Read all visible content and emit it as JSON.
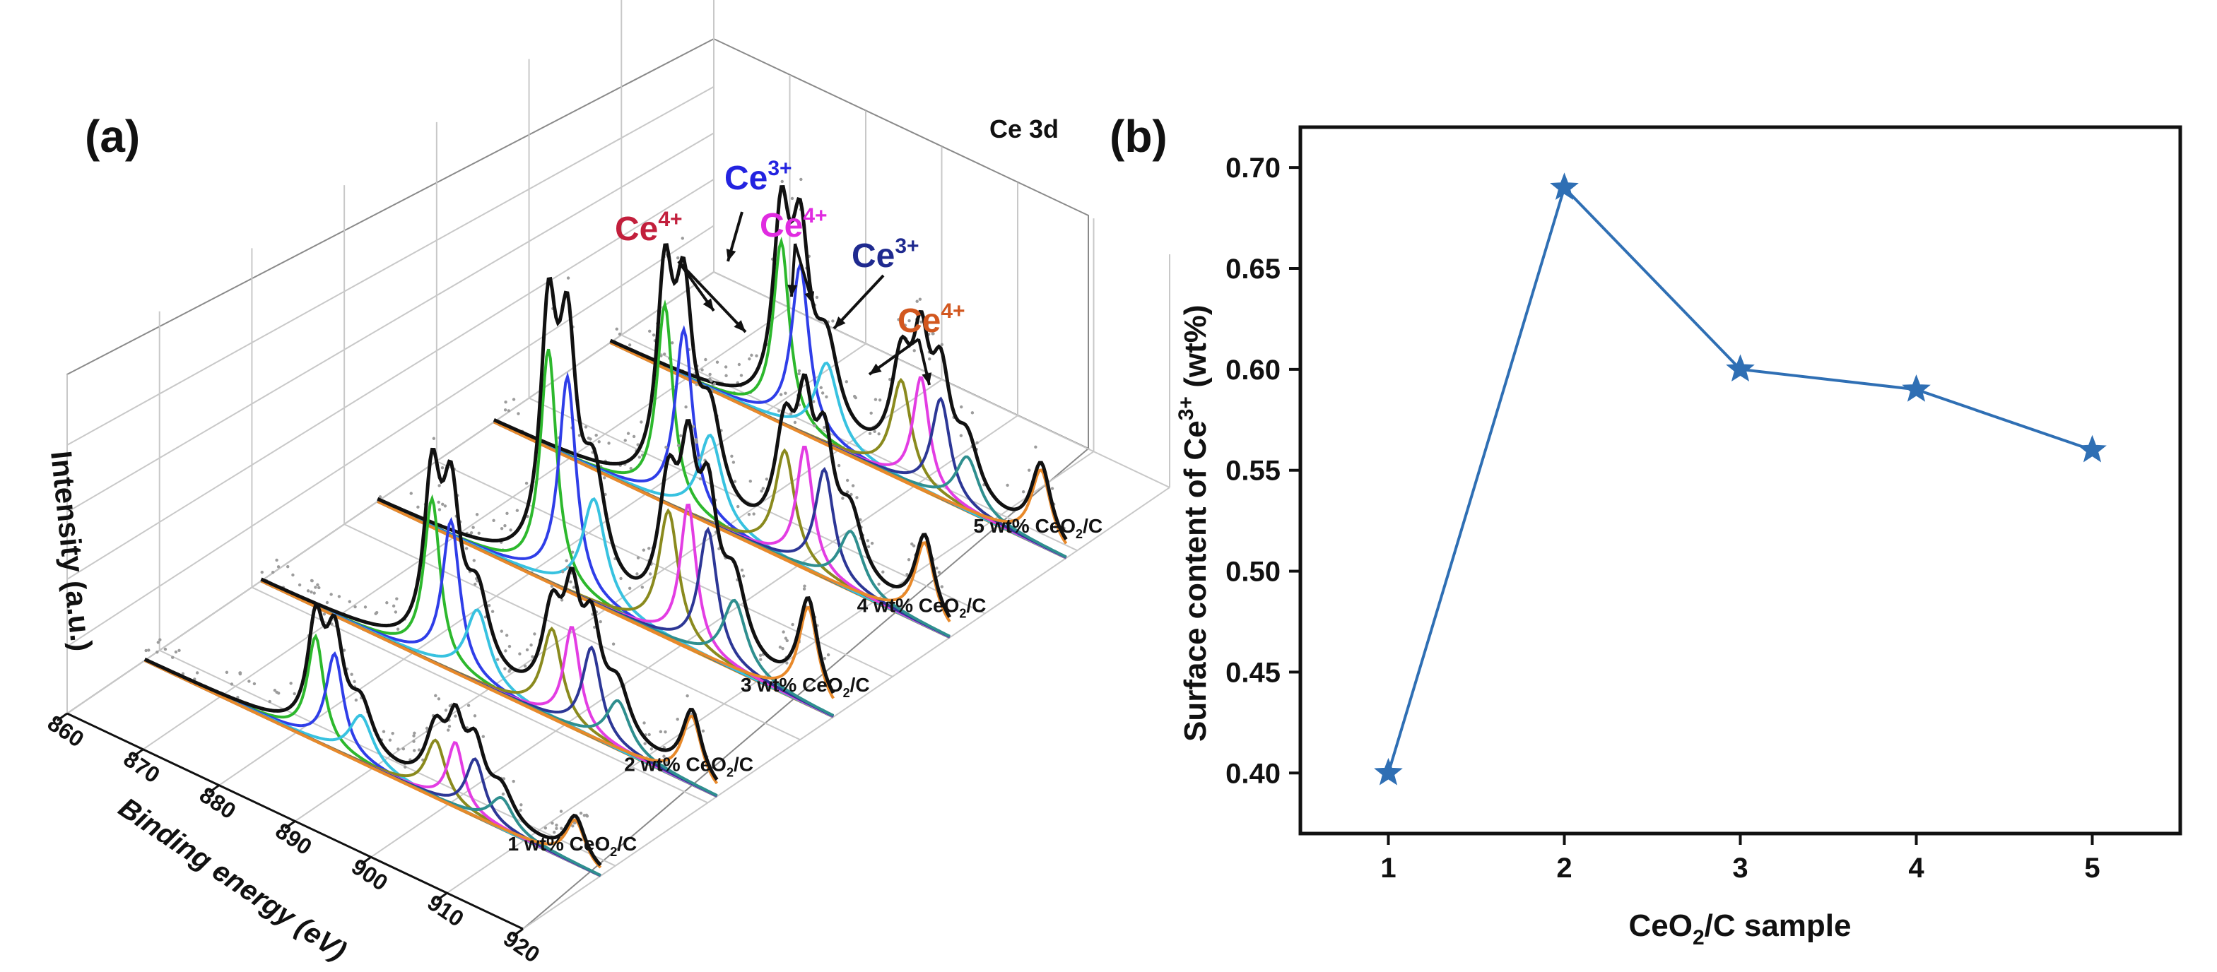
{
  "chart_data": [
    {
      "panel": "(a)",
      "type": "line",
      "subtype": "3d-waterfall-xps",
      "annotation": "Ce 3d",
      "ylabel": "Intensity (a.u.)",
      "xlabel": "Binding energy (eV)",
      "xticks": [
        860,
        870,
        880,
        890,
        900,
        910,
        920
      ],
      "xlim": [
        860,
        920
      ],
      "series": [
        {
          "name": "1 wt% CeO",
          "sub": "2",
          "tail": "/C",
          "scale": 0.45
        },
        {
          "name": "2 wt% CeO",
          "sub": "2",
          "tail": "/C",
          "scale": 0.7
        },
        {
          "name": "3 wt% CeO",
          "sub": "2",
          "tail": "/C",
          "scale": 1.0
        },
        {
          "name": "4 wt% CeO",
          "sub": "2",
          "tail": "/C",
          "scale": 0.85
        },
        {
          "name": "5 wt% CeO",
          "sub": "2",
          "tail": "/C",
          "scale": 0.78
        }
      ],
      "peaks": [
        {
          "center": 882.5,
          "color": "#2db82d",
          "amp": 1.0,
          "width": 1.3
        },
        {
          "center": 885.0,
          "color": "#2f3ee8",
          "amp": 0.92,
          "width": 1.4
        },
        {
          "center": 888.5,
          "color": "#38c2e0",
          "amp": 0.45,
          "width": 1.9
        },
        {
          "center": 898.3,
          "color": "#8a8a1e",
          "amp": 0.55,
          "width": 1.6
        },
        {
          "center": 900.9,
          "color": "#e33de3",
          "amp": 0.62,
          "width": 1.3
        },
        {
          "center": 903.5,
          "color": "#2d3796",
          "amp": 0.55,
          "width": 1.5
        },
        {
          "center": 907.0,
          "color": "#2f8f8f",
          "amp": 0.3,
          "width": 1.9
        },
        {
          "center": 916.7,
          "color": "#e8892a",
          "amp": 0.42,
          "width": 1.6
        }
      ],
      "envelope_color": "#111111",
      "baseline_colors": [
        "#e8892a",
        "#38c2e0"
      ],
      "labels": [
        {
          "main": "Ce",
          "sup": "4+",
          "color": "#c21f3c"
        },
        {
          "main": "Ce",
          "sup": "3+",
          "color": "#2323e0"
        },
        {
          "main": "Ce",
          "sup": "4+",
          "color": "#e02be0"
        },
        {
          "main": "Ce",
          "sup": "3+",
          "color": "#1f2a8f"
        },
        {
          "main": "Ce",
          "sup": "4+",
          "color": "#d2571f"
        }
      ]
    },
    {
      "panel": "(b)",
      "type": "line",
      "marker": "star",
      "color": "#2f6fb4",
      "categories": [
        1,
        2,
        3,
        4,
        5
      ],
      "values": [
        0.4,
        0.69,
        0.6,
        0.59,
        0.56
      ],
      "xlim": [
        0.5,
        5.5
      ],
      "ylim": [
        0.37,
        0.72
      ],
      "yticks": [
        "0.40",
        "0.45",
        "0.50",
        "0.55",
        "0.60",
        "0.65",
        "0.70"
      ],
      "xticks": [
        "1",
        "2",
        "3",
        "4",
        "5"
      ],
      "ylabel_main": "Surface content of Ce",
      "ylabel_sup": "3+",
      "ylabel_tail": " (wt%)",
      "xlabel_main": "CeO",
      "xlabel_sub": "2",
      "xlabel_tail": "/C sample"
    }
  ]
}
